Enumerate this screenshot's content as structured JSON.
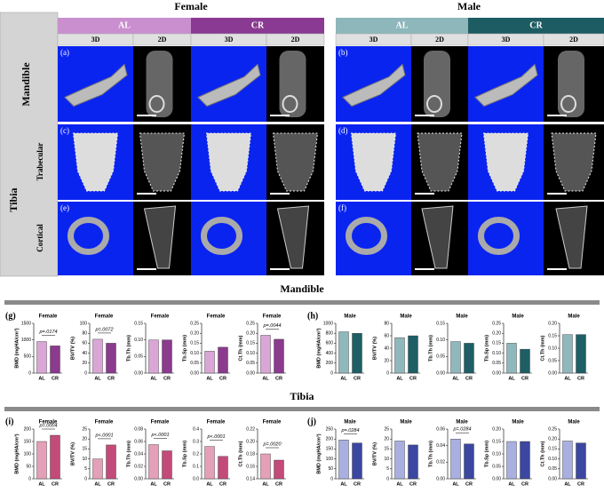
{
  "figure": {
    "sex_headers": [
      "Female",
      "Male"
    ],
    "group_headers": [
      "AL",
      "CR",
      "AL",
      "CR"
    ],
    "view_headers": [
      "3D",
      "2D",
      "3D",
      "2D",
      "3D",
      "2D",
      "3D",
      "2D"
    ],
    "row_labels": {
      "mandible": "Mandible",
      "tibia": "Tibia",
      "trabecular": "Trabecular",
      "cortical": "Cortical"
    },
    "panel_labels": [
      "(a)",
      "(b)",
      "(c)",
      "(d)",
      "(e)",
      "(f)"
    ],
    "section_titles": [
      "Mandible",
      "Tibia"
    ],
    "chart_panel_labels": [
      "(g)",
      "(h)",
      "(i)",
      "(j)"
    ]
  },
  "chart_data": [
    {
      "type": "bar",
      "title": "Female",
      "ylabel": "BMD (mgHA/cm³)",
      "categories": [
        "AL",
        "CR"
      ],
      "values": [
        950,
        820
      ],
      "colors": [
        "#d9a6d6",
        "#8b3a8e"
      ],
      "ylim": [
        0,
        1500
      ],
      "yticks": [
        0,
        500,
        1000,
        1500
      ],
      "annotation": "p=.0174"
    },
    {
      "type": "bar",
      "title": "Female",
      "ylabel": "BV/TV (%)",
      "categories": [
        "AL",
        "CR"
      ],
      "values": [
        68,
        60
      ],
      "colors": [
        "#d9a6d6",
        "#8b3a8e"
      ],
      "ylim": [
        0,
        100
      ],
      "yticks": [
        0,
        20,
        40,
        60,
        80,
        100
      ],
      "annotation": "p=.0072"
    },
    {
      "type": "bar",
      "title": "Female",
      "ylabel": "Tb.Th (mm)",
      "categories": [
        "AL",
        "CR"
      ],
      "values": [
        0.1,
        0.1
      ],
      "colors": [
        "#d9a6d6",
        "#8b3a8e"
      ],
      "ylim": [
        0,
        0.15
      ],
      "yticks": [
        {
          "value": 0,
          "label": "0.00"
        },
        0.05,
        {
          "value": 0.1,
          "label": "0.10"
        },
        0.15
      ]
    },
    {
      "type": "bar",
      "title": "Female",
      "ylabel": "Tb.Sp (mm)",
      "categories": [
        "AL",
        "CR"
      ],
      "values": [
        0.11,
        0.13
      ],
      "colors": [
        "#d9a6d6",
        "#8b3a8e"
      ],
      "ylim": [
        0,
        0.25
      ],
      "yticks": [
        {
          "value": 0,
          "label": "0.00"
        },
        0.05,
        {
          "value": 0.1,
          "label": "0.10"
        },
        0.15,
        {
          "value": 0.2,
          "label": "0.20"
        },
        0.25
      ]
    },
    {
      "type": "bar",
      "title": "Female",
      "ylabel": "Ct.Th (mm)",
      "categories": [
        "AL",
        "CR"
      ],
      "values": [
        0.19,
        0.17
      ],
      "colors": [
        "#d9a6d6",
        "#8b3a8e"
      ],
      "ylim": [
        0,
        0.25
      ],
      "yticks": [
        {
          "value": 0,
          "label": "0.00"
        },
        0.05,
        {
          "value": 0.1,
          "label": "0.10"
        },
        0.15,
        {
          "value": 0.2,
          "label": "0.20"
        },
        0.25
      ],
      "annotation": "p=.0044"
    },
    {
      "type": "bar",
      "title": "Male",
      "ylabel": "BMD (mgHA/cm³)",
      "categories": [
        "AL",
        "CR"
      ],
      "values": [
        830,
        800
      ],
      "colors": [
        "#8fb8bc",
        "#1e5f66"
      ],
      "ylim": [
        0,
        1000
      ],
      "yticks": [
        0,
        200,
        400,
        600,
        800,
        1000
      ]
    },
    {
      "type": "bar",
      "title": "Male",
      "ylabel": "BV/TV (%)",
      "categories": [
        "AL",
        "CR"
      ],
      "values": [
        57,
        60
      ],
      "colors": [
        "#8fb8bc",
        "#1e5f66"
      ],
      "ylim": [
        0,
        80
      ],
      "yticks": [
        0,
        20,
        40,
        60,
        80
      ]
    },
    {
      "type": "bar",
      "title": "Male",
      "ylabel": "Tb.Th (mm)",
      "categories": [
        "AL",
        "CR"
      ],
      "values": [
        0.095,
        0.09
      ],
      "colors": [
        "#8fb8bc",
        "#1e5f66"
      ],
      "ylim": [
        0,
        0.15
      ],
      "yticks": [
        {
          "value": 0,
          "label": "0.00"
        },
        0.05,
        {
          "value": 0.1,
          "label": "0.10"
        },
        0.15
      ]
    },
    {
      "type": "bar",
      "title": "Male",
      "ylabel": "Tb.Sp (mm)",
      "categories": [
        "AL",
        "CR"
      ],
      "values": [
        0.15,
        0.12
      ],
      "colors": [
        "#8fb8bc",
        "#1e5f66"
      ],
      "ylim": [
        0,
        0.25
      ],
      "yticks": [
        {
          "value": 0,
          "label": "0.00"
        },
        0.05,
        {
          "value": 0.1,
          "label": "0.10"
        },
        0.15,
        {
          "value": 0.2,
          "label": "0.20"
        },
        0.25
      ]
    },
    {
      "type": "bar",
      "title": "Male",
      "ylabel": "Ct.Th (mm)",
      "categories": [
        "AL",
        "CR"
      ],
      "values": [
        0.155,
        0.155
      ],
      "colors": [
        "#8fb8bc",
        "#1e5f66"
      ],
      "ylim": [
        0,
        0.2
      ],
      "yticks": [
        {
          "value": 0,
          "label": "0.00"
        },
        0.05,
        {
          "value": 0.1,
          "label": "0.10"
        },
        0.15,
        {
          "value": 0.2,
          "label": "0.20"
        }
      ]
    },
    {
      "type": "bar",
      "title": "Female",
      "ylabel": "BMD (mgHA/cm³)",
      "categories": [
        "AL",
        "CR"
      ],
      "values": [
        150,
        175
      ],
      "colors": [
        "#e4a0b8",
        "#c24b7a"
      ],
      "ylim": [
        0,
        200
      ],
      "yticks": [
        0,
        50,
        100,
        150,
        200
      ],
      "annotation": "p=.0004"
    },
    {
      "type": "bar",
      "title": "Female",
      "ylabel": "BV/TV (%)",
      "categories": [
        "AL",
        "CR"
      ],
      "values": [
        10,
        17
      ],
      "colors": [
        "#e4a0b8",
        "#c24b7a"
      ],
      "ylim": [
        0,
        25
      ],
      "yticks": [
        0,
        5,
        10,
        15,
        20,
        25
      ],
      "annotation": "p<.0001"
    },
    {
      "type": "bar",
      "title": "Female",
      "ylabel": "Tb.Th (mm)",
      "categories": [
        "AL",
        "CR"
      ],
      "values": [
        0.055,
        0.045
      ],
      "colors": [
        "#e4a0b8",
        "#c24b7a"
      ],
      "ylim": [
        0,
        0.08
      ],
      "yticks": [
        {
          "value": 0,
          "label": "0.00"
        },
        0.02,
        0.04,
        0.06,
        0.08
      ],
      "annotation": "p<.0001"
    },
    {
      "type": "bar",
      "title": "Female",
      "ylabel": "Tb.Sp (mm)",
      "categories": [
        "AL",
        "CR"
      ],
      "values": [
        0.26,
        0.18
      ],
      "colors": [
        "#e4a0b8",
        "#c24b7a"
      ],
      "ylim": [
        0,
        0.4
      ],
      "yticks": [
        {
          "value": 0,
          "label": "0.0"
        },
        0.1,
        0.2,
        0.3,
        0.4
      ],
      "annotation": "p<.0001"
    },
    {
      "type": "bar",
      "title": "Female",
      "ylabel": "Ct.Th (mm)",
      "categories": [
        "AL",
        "CR"
      ],
      "values": [
        0.18,
        0.17
      ],
      "colors": [
        "#e4a0b8",
        "#c24b7a"
      ],
      "ylim": [
        0.14,
        0.22
      ],
      "yticks": [
        0.14,
        0.16,
        0.18,
        {
          "value": 0.2,
          "label": "0.20"
        },
        0.22
      ],
      "annotation": "p=.0020"
    },
    {
      "type": "bar",
      "title": "Male",
      "ylabel": "BMD (mgHA/cm³)",
      "categories": [
        "AL",
        "CR"
      ],
      "values": [
        195,
        180
      ],
      "colors": [
        "#a9b0e0",
        "#3b47a0"
      ],
      "ylim": [
        0,
        250
      ],
      "yticks": [
        0,
        50,
        100,
        150,
        200,
        250
      ],
      "annotation": "p=.0284"
    },
    {
      "type": "bar",
      "title": "Male",
      "ylabel": "BV/TV (%)",
      "categories": [
        "AL",
        "CR"
      ],
      "values": [
        19,
        17
      ],
      "colors": [
        "#a9b0e0",
        "#3b47a0"
      ],
      "ylim": [
        0,
        25
      ],
      "yticks": [
        0,
        5,
        10,
        15,
        20,
        25
      ]
    },
    {
      "type": "bar",
      "title": "Male",
      "ylabel": "Tb.Th (mm)",
      "categories": [
        "AL",
        "CR"
      ],
      "values": [
        0.048,
        0.042
      ],
      "colors": [
        "#a9b0e0",
        "#3b47a0"
      ],
      "ylim": [
        0,
        0.06
      ],
      "yticks": [
        {
          "value": 0,
          "label": "0.00"
        },
        0.02,
        0.04,
        0.06
      ],
      "annotation": "p=.0284"
    },
    {
      "type": "bar",
      "title": "Male",
      "ylabel": "Tb.Sp (mm)",
      "categories": [
        "AL",
        "CR"
      ],
      "values": [
        0.15,
        0.15
      ],
      "colors": [
        "#a9b0e0",
        "#3b47a0"
      ],
      "ylim": [
        0,
        0.2
      ],
      "yticks": [
        {
          "value": 0,
          "label": "0.00"
        },
        0.05,
        {
          "value": 0.1,
          "label": "0.10"
        },
        0.15,
        {
          "value": 0.2,
          "label": "0.20"
        }
      ]
    },
    {
      "type": "bar",
      "title": "Male",
      "ylabel": "Ct.Th (mm)",
      "categories": [
        "AL",
        "CR"
      ],
      "values": [
        0.19,
        0.18
      ],
      "colors": [
        "#a9b0e0",
        "#3b47a0"
      ],
      "ylim": [
        0,
        0.25
      ],
      "yticks": [
        {
          "value": 0,
          "label": "0.00"
        },
        0.05,
        {
          "value": 0.1,
          "label": "0.10"
        },
        0.15,
        {
          "value": 0.2,
          "label": "0.20"
        },
        0.25
      ]
    }
  ]
}
